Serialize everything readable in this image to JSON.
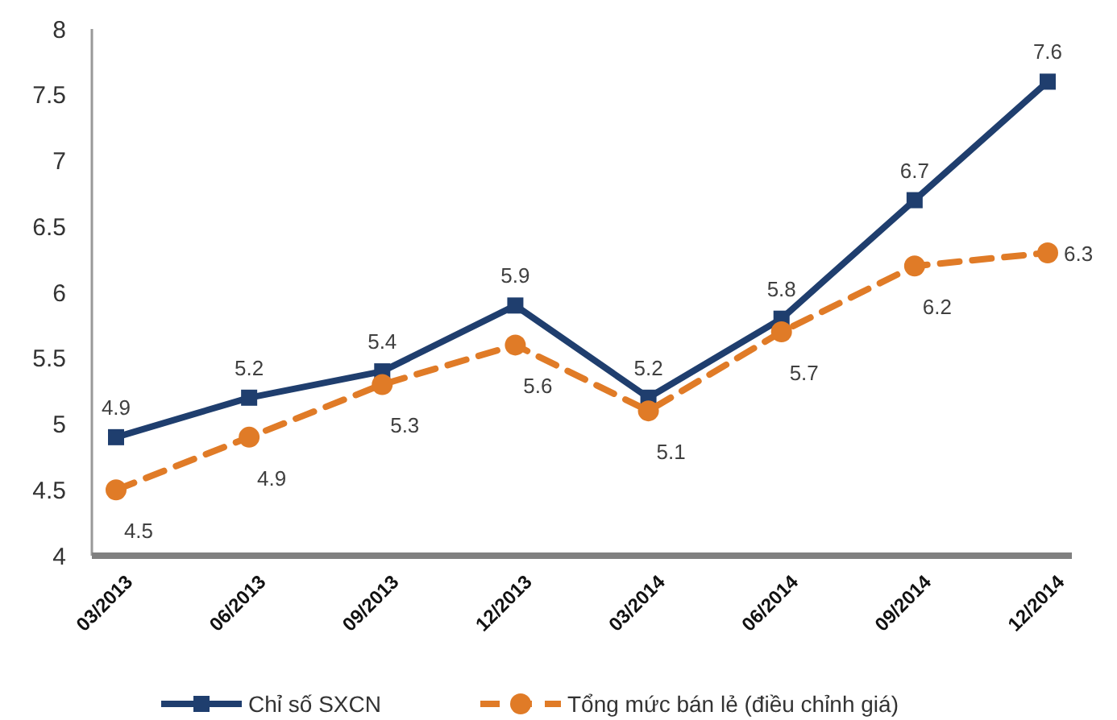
{
  "chart_data": {
    "type": "line",
    "categories": [
      "03/2013",
      "06/2013",
      "09/2013",
      "12/2013",
      "03/2014",
      "06/2014",
      "09/2014",
      "12/2014"
    ],
    "series": [
      {
        "name": "Chỉ số SXCN",
        "color": "#1f3e6e",
        "values": [
          4.9,
          5.2,
          5.4,
          5.9,
          5.2,
          5.8,
          6.7,
          7.6
        ],
        "marker": "square",
        "line_style": "solid"
      },
      {
        "name": "Tổng mức bán lẻ (điều chỉnh giá)",
        "color": "#e07b27",
        "values": [
          4.5,
          4.9,
          5.3,
          5.6,
          5.1,
          5.7,
          6.2,
          6.3
        ],
        "marker": "circle",
        "line_style": "dashed"
      }
    ],
    "ylim": [
      4,
      8
    ],
    "yticks": [
      4,
      4.5,
      5,
      5.5,
      6,
      6.5,
      7,
      7.5,
      8
    ],
    "grid": false,
    "legend": "bottom",
    "data_labels": true
  }
}
